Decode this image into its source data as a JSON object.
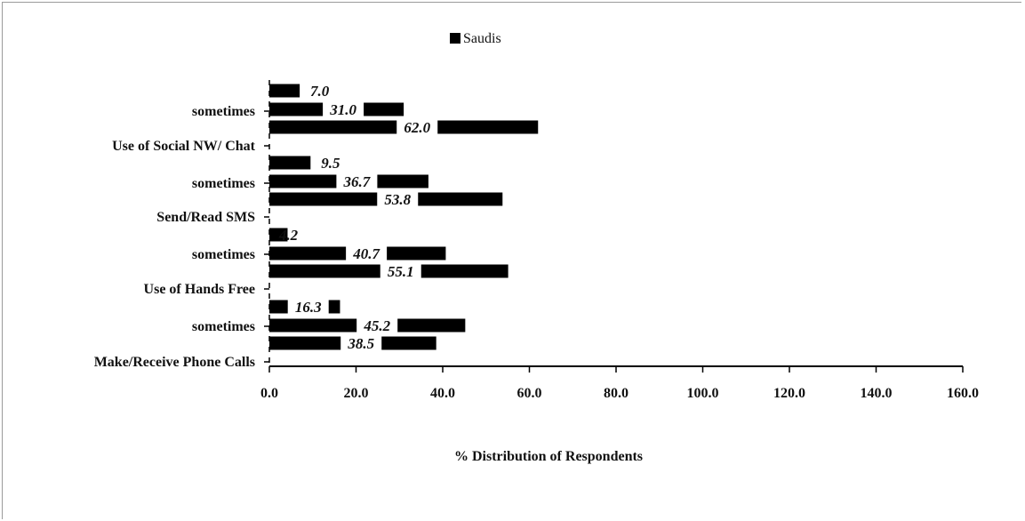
{
  "chart_data": {
    "type": "bar",
    "orientation": "horizontal",
    "xlabel": "% Distribution of Respondents",
    "xlim": [
      0,
      160
    ],
    "xticks": [
      "0.0",
      "20.0",
      "40.0",
      "60.0",
      "80.0",
      "100.0",
      "120.0",
      "140.0",
      "160.0"
    ],
    "legend": {
      "position": "top-center",
      "entries": [
        "Saudis"
      ]
    },
    "series": [
      {
        "name": "Saudis",
        "color": "#000000"
      }
    ],
    "category_labels": [
      "sometimes",
      "Use of Social NW/ Chat",
      "sometimes",
      "Send/Read SMS",
      "sometimes",
      "Use of Hands Free",
      "sometimes",
      "Make/Receive Phone Calls"
    ],
    "bars": [
      {
        "value": 7.0,
        "label": "7.0"
      },
      {
        "value": 31.0,
        "label": "31.0"
      },
      {
        "value": 62.0,
        "label": "62.0"
      },
      {
        "value": 9.5,
        "label": "9.5"
      },
      {
        "value": 36.7,
        "label": "36.7"
      },
      {
        "value": 53.8,
        "label": "53.8"
      },
      {
        "value": 4.2,
        "label": "4.2"
      },
      {
        "value": 40.7,
        "label": "40.7"
      },
      {
        "value": 55.1,
        "label": "55.1"
      },
      {
        "value": 16.3,
        "label": "16.3"
      },
      {
        "value": 45.2,
        "label": "45.2"
      },
      {
        "value": 38.5,
        "label": "38.5"
      }
    ],
    "grid": false
  }
}
